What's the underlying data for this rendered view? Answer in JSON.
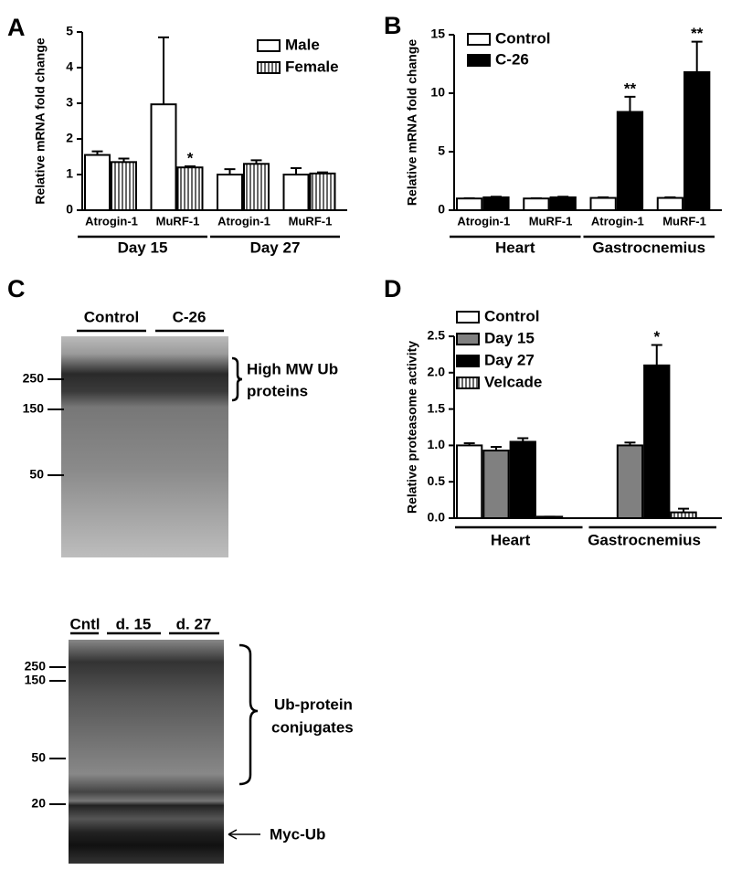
{
  "chart_data": [
    {
      "type": "bar",
      "panel": "A",
      "y_label": "Relative mRNA fold  change",
      "categories": [
        "Atrogin-1",
        "MuRF-1",
        "Atrogin-1",
        "MuRF-1"
      ],
      "group_labels": [
        "Day 15",
        "Day 27"
      ],
      "series": [
        {
          "name": "Male",
          "color": "#ffffff",
          "values": [
            1.55,
            2.97,
            1.0,
            1.0
          ],
          "errors": [
            0.1,
            1.88,
            0.15,
            0.18
          ]
        },
        {
          "name": "Female",
          "color": "#ffffff",
          "hatch": true,
          "values": [
            1.35,
            1.2,
            1.3,
            1.03
          ],
          "errors": [
            0.1,
            0.03,
            0.1,
            0.03
          ],
          "significance": [
            null,
            "*",
            null,
            null
          ]
        }
      ],
      "ylim": [
        0,
        5
      ],
      "yticks": [
        0,
        1,
        2,
        3,
        4,
        5
      ]
    },
    {
      "type": "bar",
      "panel": "B",
      "y_label": "Relative mRNA fold  change",
      "categories": [
        "Atrogin-1",
        "MuRF-1",
        "Atrogin-1",
        "MuRF-1"
      ],
      "group_labels": [
        "Heart",
        "Gastrocnemius"
      ],
      "series": [
        {
          "name": "Control",
          "color": "#ffffff",
          "values": [
            1.0,
            1.0,
            1.05,
            1.05
          ],
          "errors": [
            0.03,
            0.03,
            0.05,
            0.05
          ]
        },
        {
          "name": "C-26",
          "color": "#000000",
          "values": [
            1.1,
            1.1,
            8.4,
            11.8
          ],
          "errors": [
            0.05,
            0.05,
            1.3,
            2.6
          ],
          "significance": [
            null,
            null,
            "**",
            "**"
          ]
        }
      ],
      "ylim": [
        0,
        15
      ],
      "yticks": [
        0,
        5,
        10,
        15
      ]
    },
    {
      "type": "bar",
      "panel": "D",
      "y_label": "Relative proteasome activity",
      "categories": [
        "Heart",
        "Gastrocnemius"
      ],
      "series": [
        {
          "name": "Control",
          "color": "#ffffff",
          "values": [
            1.0,
            null
          ],
          "errors": [
            0.03,
            null
          ]
        },
        {
          "name": "Day 15",
          "color": "#808080",
          "values": [
            0.93,
            1.0
          ],
          "errors": [
            0.05,
            0.04
          ]
        },
        {
          "name": "Day 27",
          "color": "#000000",
          "values": [
            1.05,
            2.1
          ],
          "errors": [
            0.05,
            0.28
          ],
          "significance": [
            null,
            "*"
          ]
        },
        {
          "name": "Velcade",
          "color": "#ffffff",
          "hatch": true,
          "values": [
            0.02,
            0.08
          ],
          "errors": [
            0.0,
            0.05
          ]
        }
      ],
      "ylim": [
        0,
        2.5
      ],
      "yticks": [
        {
          "value": 0,
          "label": "0.0"
        },
        0.5,
        {
          "value": 1,
          "label": "1.0"
        },
        1.5,
        {
          "value": 2,
          "label": "2.0"
        },
        2.5
      ]
    }
  ],
  "blot_panel": {
    "panel": "C",
    "blots": [
      {
        "lanes": [
          "Control",
          "C-26"
        ],
        "markers": [
          "250",
          "150",
          "50"
        ],
        "annotation": [
          "High MW Ub",
          "proteins"
        ]
      },
      {
        "lanes": [
          "Cntl",
          "d. 15",
          "d. 27"
        ],
        "markers": [
          "250",
          "150",
          "50",
          "20"
        ],
        "annotation": [
          "Ub-protein",
          "conjugates"
        ],
        "arrow_label": "Myc-Ub"
      }
    ]
  }
}
